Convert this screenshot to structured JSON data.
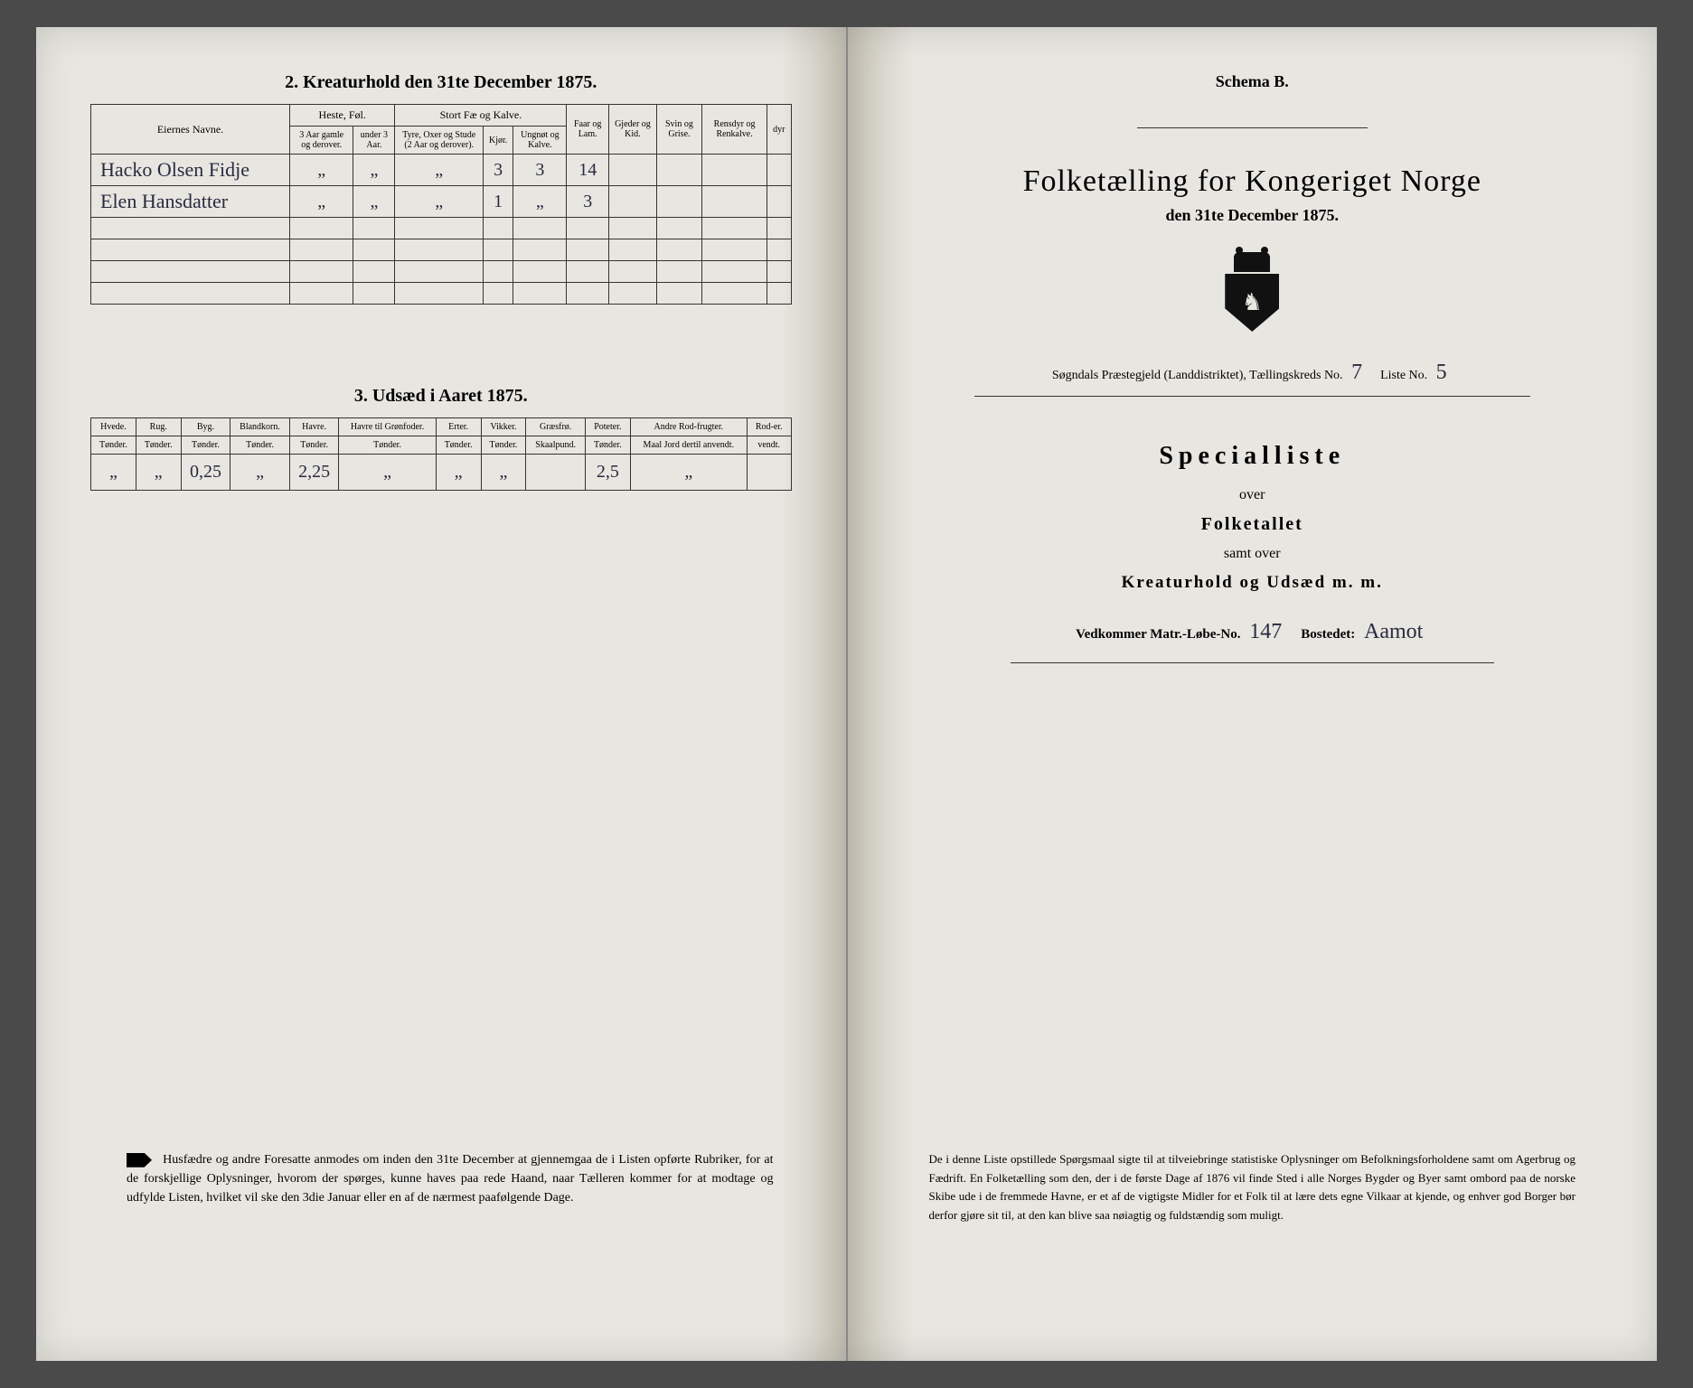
{
  "left": {
    "section2_title": "2. Kreaturhold den 31te December 1875.",
    "table1": {
      "col_names": "Eiernes Navne.",
      "group_heste": "Heste, Føl.",
      "group_stort": "Stort Fæ og Kalve.",
      "col_faar": "Faar og Lam.",
      "col_gjeder": "Gjeder og Kid.",
      "col_svin": "Svin og Grise.",
      "col_rensdyr": "Rensdyr og Renkalve.",
      "col_dyr": "dyr",
      "sub_heste1": "3 Aar gamle og derover.",
      "sub_heste2": "under 3 Aar.",
      "sub_stort1": "Tyre, Oxer og Stude (2 Aar og derover).",
      "sub_stort2": "Kjør.",
      "sub_stort3": "Ungnøt og Kalve.",
      "rows": [
        {
          "name": "Hacko Olsen Fidje",
          "c1": "„",
          "c2": "„",
          "c3": "„",
          "c4": "3",
          "c5": "3",
          "c6": "14",
          "c7": "",
          "c8": "",
          "c9": "",
          "c10": ""
        },
        {
          "name": "Elen Hansdatter",
          "c1": "„",
          "c2": "„",
          "c3": "„",
          "c4": "1",
          "c5": "„",
          "c6": "3",
          "c7": "",
          "c8": "",
          "c9": "",
          "c10": ""
        }
      ]
    },
    "section3_title": "3. Udsæd i Aaret 1875.",
    "table2": {
      "cols": [
        {
          "h": "Hvede.",
          "s": "Tønder."
        },
        {
          "h": "Rug.",
          "s": "Tønder."
        },
        {
          "h": "Byg.",
          "s": "Tønder."
        },
        {
          "h": "Blandkorn.",
          "s": "Tønder."
        },
        {
          "h": "Havre.",
          "s": "Tønder."
        },
        {
          "h": "Havre til Grønfoder.",
          "s": "Tønder."
        },
        {
          "h": "Erter.",
          "s": "Tønder."
        },
        {
          "h": "Vikker.",
          "s": "Tønder."
        },
        {
          "h": "Græsfrø.",
          "s": "Skaalpund."
        },
        {
          "h": "Poteter.",
          "s": "Tønder."
        },
        {
          "h": "Andre Rod-frugter.",
          "s": "Maal Jord dertil anvendt."
        },
        {
          "h": "Rod-er.",
          "s": "vendt."
        }
      ],
      "row": [
        "„",
        "„",
        "0,25",
        "„",
        "2,25",
        "„",
        "„",
        "„",
        "",
        "2,5",
        "„",
        ""
      ]
    },
    "footnote": "Husfædre og andre Foresatte anmodes om inden den 31te December at gjennemgaa de i Listen opførte Rubriker, for at de forskjellige Oplysninger, hvorom der spørges, kunne haves paa rede Haand, naar Tælleren kommer for at modtage og udfylde Listen, hvilket vil ske den 3die Januar eller en af de nærmest paafølgende Dage."
  },
  "right": {
    "schema": "Schema B.",
    "title": "Folketælling for Kongeriget Norge",
    "subtitle": "den 31te December 1875.",
    "kreds_prefix": "Søgndals Præstegjeld (Landdistriktet), Tællingskreds No.",
    "kreds_no": "7",
    "liste_label": "Liste No.",
    "liste_no": "5",
    "spec_title": "Specialliste",
    "spec_over": "over",
    "spec_folketallet": "Folketallet",
    "spec_samt": "samt over",
    "spec_kreat": "Kreaturhold og Udsæd m. m.",
    "vedk_label": "Vedkommer Matr.-Løbe-No.",
    "vedk_no": "147",
    "bostedet_label": "Bostedet:",
    "bostedet_val": "Aamot",
    "footnote": "De i denne Liste opstillede Spørgsmaal sigte til at tilveiebringe statistiske Oplysninger om Befolkningsforholdene samt om Agerbrug og Fædrift. En Folketælling som den, der i de første Dage af 1876 vil finde Sted i alle Norges Bygder og Byer samt ombord paa de norske Skibe ude i de fremmede Havne, er et af de vigtigste Midler for et Folk til at lære dets egne Vilkaar at kjende, og enhver god Borger bør derfor gjøre sit til, at den kan blive saa nøiagtig og fuldstændig som muligt."
  }
}
